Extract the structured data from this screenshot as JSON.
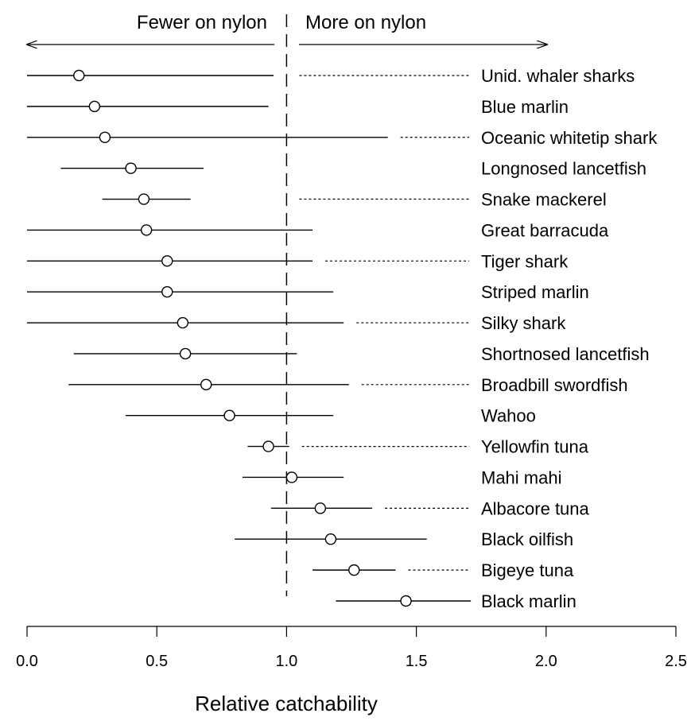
{
  "chart_data": {
    "type": "forest",
    "xlabel": "Relative catchability",
    "xlim": [
      0.0,
      2.5
    ],
    "xticks": [
      "0.0",
      "0.5",
      "1.0",
      "1.5",
      "2.0",
      "2.5"
    ],
    "reference_line": 1.0,
    "direction_labels": {
      "left": "Fewer on nylon",
      "right": "More on nylon"
    },
    "rows": [
      {
        "label": "Unid. whaler sharks",
        "estimate": 0.2,
        "lower": 0.0,
        "upper": 0.95,
        "dotted": true
      },
      {
        "label": "Blue marlin",
        "estimate": 0.26,
        "lower": 0.0,
        "upper": 0.93,
        "dotted": false
      },
      {
        "label": "Oceanic whitetip shark",
        "estimate": 0.3,
        "lower": 0.0,
        "upper": 1.39,
        "dotted": true
      },
      {
        "label": "Longnosed lancetfish",
        "estimate": 0.4,
        "lower": 0.13,
        "upper": 0.68,
        "dotted": false
      },
      {
        "label": "Snake mackerel",
        "estimate": 0.45,
        "lower": 0.29,
        "upper": 0.63,
        "dotted": true
      },
      {
        "label": "Great barracuda",
        "estimate": 0.46,
        "lower": 0.0,
        "upper": 1.1,
        "dotted": false
      },
      {
        "label": "Tiger shark",
        "estimate": 0.54,
        "lower": 0.0,
        "upper": 1.1,
        "dotted": true
      },
      {
        "label": "Striped marlin",
        "estimate": 0.54,
        "lower": 0.0,
        "upper": 1.18,
        "dotted": false
      },
      {
        "label": "Silky shark",
        "estimate": 0.6,
        "lower": 0.0,
        "upper": 1.22,
        "dotted": true
      },
      {
        "label": "Shortnosed lancetfish",
        "estimate": 0.61,
        "lower": 0.18,
        "upper": 1.04,
        "dotted": false
      },
      {
        "label": "Broadbill swordfish",
        "estimate": 0.69,
        "lower": 0.16,
        "upper": 1.24,
        "dotted": true
      },
      {
        "label": "Wahoo",
        "estimate": 0.78,
        "lower": 0.38,
        "upper": 1.18,
        "dotted": false
      },
      {
        "label": "Yellowfin tuna",
        "estimate": 0.93,
        "lower": 0.85,
        "upper": 1.01,
        "dotted": true
      },
      {
        "label": "Mahi mahi",
        "estimate": 1.02,
        "lower": 0.83,
        "upper": 1.22,
        "dotted": false
      },
      {
        "label": "Albacore tuna",
        "estimate": 1.13,
        "lower": 0.94,
        "upper": 1.33,
        "dotted": true
      },
      {
        "label": "Black oilfish",
        "estimate": 1.17,
        "lower": 0.8,
        "upper": 1.54,
        "dotted": false
      },
      {
        "label": "Bigeye tuna",
        "estimate": 1.26,
        "lower": 1.1,
        "upper": 1.42,
        "dotted": true
      },
      {
        "label": "Black marlin",
        "estimate": 1.46,
        "lower": 1.19,
        "upper": 1.71,
        "dotted": false
      }
    ],
    "grid": false,
    "legend": "none"
  }
}
